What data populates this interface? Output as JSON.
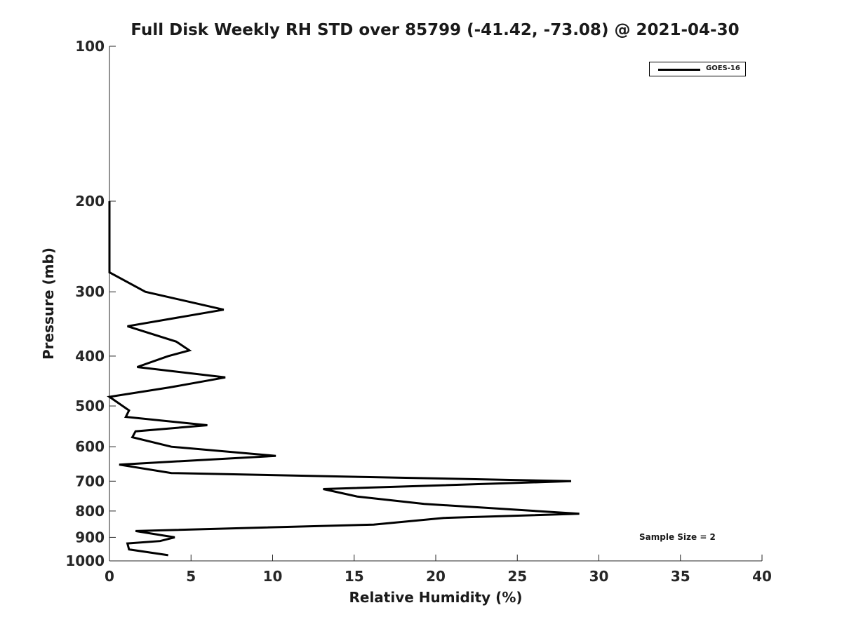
{
  "chart_data": {
    "type": "line",
    "title": "Full Disk Weekly RH STD over 85799 (-41.42, -73.08) @ 2021-04-30",
    "xlabel": "Relative Humidity (%)",
    "ylabel": "Pressure (mb)",
    "xlim": [
      0,
      40
    ],
    "ylim": [
      100,
      1000
    ],
    "y_scale": "log",
    "y_inverted": true,
    "xticks": [
      "0",
      "5",
      "10",
      "15",
      "20",
      "25",
      "30",
      "35",
      "40"
    ],
    "yticks": [
      "100",
      "200",
      "300",
      "400",
      "500",
      "600",
      "700",
      "800",
      "900",
      "1000"
    ],
    "legend_position": "top-right",
    "grid": false,
    "series": [
      {
        "name": "GOES-16",
        "color": "#000000",
        "points": [
          [
            0.0,
            200
          ],
          [
            0.0,
            250
          ],
          [
            0.0,
            275
          ],
          [
            2.2,
            300
          ],
          [
            7.0,
            325
          ],
          [
            1.1,
            350
          ],
          [
            4.1,
            375
          ],
          [
            4.9,
            390
          ],
          [
            3.6,
            400
          ],
          [
            1.7,
            420
          ],
          [
            7.1,
            440
          ],
          [
            3.7,
            460
          ],
          [
            0.0,
            480
          ],
          [
            1.2,
            510
          ],
          [
            1.0,
            525
          ],
          [
            6.0,
            545
          ],
          [
            1.6,
            560
          ],
          [
            1.4,
            575
          ],
          [
            3.8,
            600
          ],
          [
            10.2,
            625
          ],
          [
            0.6,
            650
          ],
          [
            3.8,
            675
          ],
          [
            28.3,
            700
          ],
          [
            13.1,
            725
          ],
          [
            15.2,
            750
          ],
          [
            19.3,
            775
          ],
          [
            28.8,
            810
          ],
          [
            20.5,
            825
          ],
          [
            16.2,
            850
          ],
          [
            1.6,
            875
          ],
          [
            4.0,
            900
          ],
          [
            3.1,
            915
          ],
          [
            1.1,
            925
          ],
          [
            1.2,
            950
          ],
          [
            3.6,
            975
          ]
        ]
      }
    ],
    "annotation": "Sample Size = 2"
  }
}
